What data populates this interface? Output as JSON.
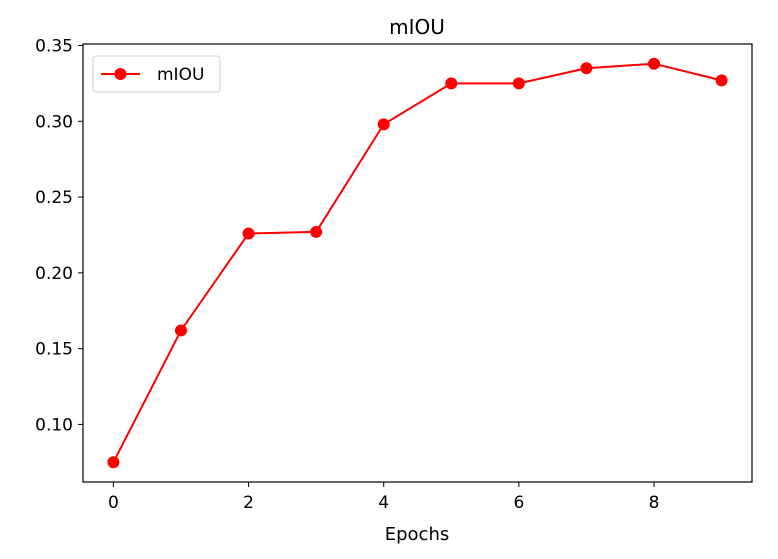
{
  "chart_data": {
    "type": "line",
    "title": "mIOU",
    "xlabel": "Epochs",
    "ylabel": "",
    "x": [
      0,
      1,
      2,
      3,
      4,
      5,
      6,
      7,
      8,
      9
    ],
    "series": [
      {
        "name": "mIOU",
        "values": [
          0.075,
          0.162,
          0.226,
          0.227,
          0.298,
          0.325,
          0.325,
          0.335,
          0.338,
          0.327
        ],
        "color": "#ff0000",
        "marker": "circle"
      }
    ],
    "xlim": [
      -0.45,
      9.45
    ],
    "ylim": [
      0.062,
      0.351
    ],
    "xticks": [
      0,
      2,
      4,
      6,
      8
    ],
    "xtick_labels": [
      "0",
      "2",
      "4",
      "6",
      "8"
    ],
    "yticks": [
      0.1,
      0.15,
      0.2,
      0.25,
      0.3,
      0.35
    ],
    "ytick_labels": [
      "0.10",
      "0.15",
      "0.20",
      "0.25",
      "0.30",
      "0.35"
    ],
    "grid": false,
    "legend": "top-left"
  }
}
